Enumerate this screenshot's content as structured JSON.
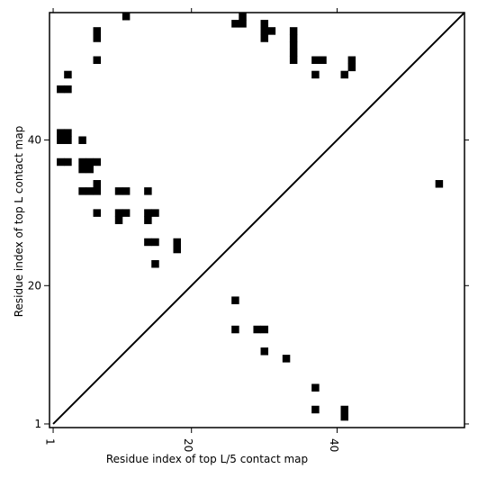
{
  "chart_data": {
    "type": "heatmap",
    "title": "",
    "xlabel": "Residue index of top L/5 contact map",
    "ylabel": "Residue index of top L contact map",
    "xlim": [
      0.5,
      57.5
    ],
    "ylim": [
      0.5,
      57.5
    ],
    "x_ticks": [
      {
        "value": 1,
        "label": "1"
      },
      {
        "value": 20,
        "label": "20"
      },
      {
        "value": 40,
        "label": "40"
      }
    ],
    "y_ticks": [
      {
        "value": 1,
        "label": "1"
      },
      {
        "value": 20,
        "label": "20"
      },
      {
        "value": 40,
        "label": "40"
      }
    ],
    "diagonal": true,
    "grid": false,
    "color": "#000000",
    "upper_contacts": [
      [
        11,
        57
      ],
      [
        26,
        56
      ],
      [
        27,
        56
      ],
      [
        27,
        57
      ],
      [
        30,
        56
      ],
      [
        7,
        54
      ],
      [
        7,
        55
      ],
      [
        30,
        54
      ],
      [
        30,
        55
      ],
      [
        31,
        55
      ],
      [
        34,
        54
      ],
      [
        34,
        55
      ],
      [
        7,
        51
      ],
      [
        34,
        51
      ],
      [
        34,
        52
      ],
      [
        34,
        53
      ],
      [
        37,
        51
      ],
      [
        38,
        51
      ],
      [
        42,
        50
      ],
      [
        42,
        51
      ],
      [
        3,
        49
      ],
      [
        37,
        49
      ],
      [
        41,
        49
      ],
      [
        2,
        47
      ],
      [
        3,
        47
      ],
      [
        2,
        41
      ],
      [
        3,
        41
      ],
      [
        2,
        40
      ],
      [
        3,
        40
      ],
      [
        5,
        40
      ],
      [
        2,
        37
      ],
      [
        3,
        37
      ],
      [
        5,
        37
      ],
      [
        6,
        37
      ],
      [
        7,
        37
      ],
      [
        5,
        36
      ],
      [
        6,
        36
      ],
      [
        7,
        34
      ],
      [
        5,
        33
      ],
      [
        6,
        33
      ],
      [
        7,
        33
      ],
      [
        10,
        33
      ],
      [
        11,
        33
      ],
      [
        14,
        33
      ],
      [
        7,
        30
      ],
      [
        10,
        30
      ],
      [
        11,
        30
      ],
      [
        14,
        30
      ],
      [
        15,
        30
      ],
      [
        10,
        29
      ],
      [
        14,
        29
      ],
      [
        14,
        26
      ],
      [
        15,
        26
      ],
      [
        18,
        26
      ],
      [
        18,
        25
      ],
      [
        15,
        23
      ]
    ],
    "lower_contacts": [
      [
        54,
        34
      ],
      [
        26,
        18
      ],
      [
        26,
        14
      ],
      [
        29,
        14
      ],
      [
        30,
        14
      ],
      [
        30,
        11
      ],
      [
        33,
        10
      ],
      [
        37,
        6
      ],
      [
        37,
        3
      ],
      [
        41,
        3
      ],
      [
        41,
        2
      ]
    ]
  }
}
